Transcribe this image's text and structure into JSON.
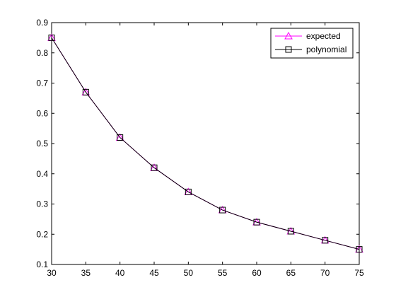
{
  "chart_data": {
    "type": "line",
    "title": "",
    "xlabel": "",
    "ylabel": "",
    "xlim": [
      30,
      75
    ],
    "ylim": [
      0.1,
      0.9
    ],
    "xticks": [
      30,
      35,
      40,
      45,
      50,
      55,
      60,
      65,
      70,
      75
    ],
    "yticks": [
      0.1,
      0.2,
      0.3,
      0.4,
      0.5,
      0.6,
      0.7,
      0.8,
      0.9
    ],
    "xtick_labels": [
      "30",
      "35",
      "40",
      "45",
      "50",
      "55",
      "60",
      "65",
      "70",
      "75"
    ],
    "ytick_labels": [
      "0.1",
      "0.2",
      "0.3",
      "0.4",
      "0.5",
      "0.6",
      "0.7",
      "0.8",
      "0.9"
    ],
    "grid": false,
    "legend_position": "top-right",
    "x": [
      30,
      35,
      40,
      45,
      50,
      55,
      60,
      65,
      70,
      75
    ],
    "series": [
      {
        "name": "expected",
        "color": "#ff00ff",
        "marker": "triangle",
        "values": [
          0.85,
          0.67,
          0.52,
          0.42,
          0.34,
          0.28,
          0.24,
          0.21,
          0.18,
          0.15
        ]
      },
      {
        "name": "polynomial",
        "color": "#000000",
        "marker": "square",
        "values": [
          0.85,
          0.67,
          0.52,
          0.42,
          0.34,
          0.28,
          0.24,
          0.21,
          0.18,
          0.15
        ]
      }
    ]
  }
}
